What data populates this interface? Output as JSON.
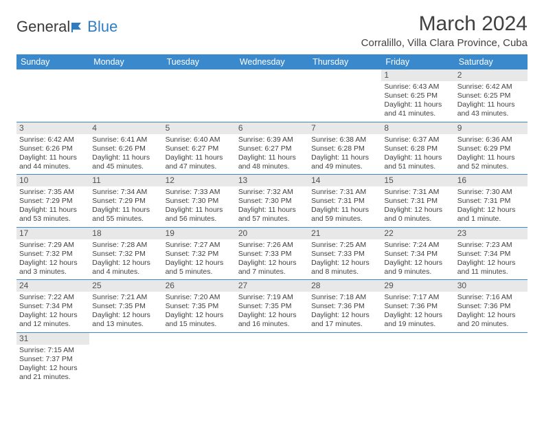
{
  "brand": {
    "part1": "General",
    "part2": "Blue"
  },
  "title": "March 2024",
  "location": "Corralillo, Villa Clara Province, Cuba",
  "colors": {
    "header_bg": "#3a89cc",
    "header_text": "#ffffff",
    "daynum_bg": "#e8e8e8",
    "border": "#3a89cc",
    "text": "#404040"
  },
  "weekdays": [
    "Sunday",
    "Monday",
    "Tuesday",
    "Wednesday",
    "Thursday",
    "Friday",
    "Saturday"
  ],
  "grid": [
    [
      null,
      null,
      null,
      null,
      null,
      {
        "n": "1",
        "sr": "Sunrise: 6:43 AM",
        "ss": "Sunset: 6:25 PM",
        "d1": "Daylight: 11 hours",
        "d2": "and 41 minutes."
      },
      {
        "n": "2",
        "sr": "Sunrise: 6:42 AM",
        "ss": "Sunset: 6:25 PM",
        "d1": "Daylight: 11 hours",
        "d2": "and 43 minutes."
      }
    ],
    [
      {
        "n": "3",
        "sr": "Sunrise: 6:42 AM",
        "ss": "Sunset: 6:26 PM",
        "d1": "Daylight: 11 hours",
        "d2": "and 44 minutes."
      },
      {
        "n": "4",
        "sr": "Sunrise: 6:41 AM",
        "ss": "Sunset: 6:26 PM",
        "d1": "Daylight: 11 hours",
        "d2": "and 45 minutes."
      },
      {
        "n": "5",
        "sr": "Sunrise: 6:40 AM",
        "ss": "Sunset: 6:27 PM",
        "d1": "Daylight: 11 hours",
        "d2": "and 47 minutes."
      },
      {
        "n": "6",
        "sr": "Sunrise: 6:39 AM",
        "ss": "Sunset: 6:27 PM",
        "d1": "Daylight: 11 hours",
        "d2": "and 48 minutes."
      },
      {
        "n": "7",
        "sr": "Sunrise: 6:38 AM",
        "ss": "Sunset: 6:28 PM",
        "d1": "Daylight: 11 hours",
        "d2": "and 49 minutes."
      },
      {
        "n": "8",
        "sr": "Sunrise: 6:37 AM",
        "ss": "Sunset: 6:28 PM",
        "d1": "Daylight: 11 hours",
        "d2": "and 51 minutes."
      },
      {
        "n": "9",
        "sr": "Sunrise: 6:36 AM",
        "ss": "Sunset: 6:29 PM",
        "d1": "Daylight: 11 hours",
        "d2": "and 52 minutes."
      }
    ],
    [
      {
        "n": "10",
        "sr": "Sunrise: 7:35 AM",
        "ss": "Sunset: 7:29 PM",
        "d1": "Daylight: 11 hours",
        "d2": "and 53 minutes."
      },
      {
        "n": "11",
        "sr": "Sunrise: 7:34 AM",
        "ss": "Sunset: 7:29 PM",
        "d1": "Daylight: 11 hours",
        "d2": "and 55 minutes."
      },
      {
        "n": "12",
        "sr": "Sunrise: 7:33 AM",
        "ss": "Sunset: 7:30 PM",
        "d1": "Daylight: 11 hours",
        "d2": "and 56 minutes."
      },
      {
        "n": "13",
        "sr": "Sunrise: 7:32 AM",
        "ss": "Sunset: 7:30 PM",
        "d1": "Daylight: 11 hours",
        "d2": "and 57 minutes."
      },
      {
        "n": "14",
        "sr": "Sunrise: 7:31 AM",
        "ss": "Sunset: 7:31 PM",
        "d1": "Daylight: 11 hours",
        "d2": "and 59 minutes."
      },
      {
        "n": "15",
        "sr": "Sunrise: 7:31 AM",
        "ss": "Sunset: 7:31 PM",
        "d1": "Daylight: 12 hours",
        "d2": "and 0 minutes."
      },
      {
        "n": "16",
        "sr": "Sunrise: 7:30 AM",
        "ss": "Sunset: 7:31 PM",
        "d1": "Daylight: 12 hours",
        "d2": "and 1 minute."
      }
    ],
    [
      {
        "n": "17",
        "sr": "Sunrise: 7:29 AM",
        "ss": "Sunset: 7:32 PM",
        "d1": "Daylight: 12 hours",
        "d2": "and 3 minutes."
      },
      {
        "n": "18",
        "sr": "Sunrise: 7:28 AM",
        "ss": "Sunset: 7:32 PM",
        "d1": "Daylight: 12 hours",
        "d2": "and 4 minutes."
      },
      {
        "n": "19",
        "sr": "Sunrise: 7:27 AM",
        "ss": "Sunset: 7:32 PM",
        "d1": "Daylight: 12 hours",
        "d2": "and 5 minutes."
      },
      {
        "n": "20",
        "sr": "Sunrise: 7:26 AM",
        "ss": "Sunset: 7:33 PM",
        "d1": "Daylight: 12 hours",
        "d2": "and 7 minutes."
      },
      {
        "n": "21",
        "sr": "Sunrise: 7:25 AM",
        "ss": "Sunset: 7:33 PM",
        "d1": "Daylight: 12 hours",
        "d2": "and 8 minutes."
      },
      {
        "n": "22",
        "sr": "Sunrise: 7:24 AM",
        "ss": "Sunset: 7:34 PM",
        "d1": "Daylight: 12 hours",
        "d2": "and 9 minutes."
      },
      {
        "n": "23",
        "sr": "Sunrise: 7:23 AM",
        "ss": "Sunset: 7:34 PM",
        "d1": "Daylight: 12 hours",
        "d2": "and 11 minutes."
      }
    ],
    [
      {
        "n": "24",
        "sr": "Sunrise: 7:22 AM",
        "ss": "Sunset: 7:34 PM",
        "d1": "Daylight: 12 hours",
        "d2": "and 12 minutes."
      },
      {
        "n": "25",
        "sr": "Sunrise: 7:21 AM",
        "ss": "Sunset: 7:35 PM",
        "d1": "Daylight: 12 hours",
        "d2": "and 13 minutes."
      },
      {
        "n": "26",
        "sr": "Sunrise: 7:20 AM",
        "ss": "Sunset: 7:35 PM",
        "d1": "Daylight: 12 hours",
        "d2": "and 15 minutes."
      },
      {
        "n": "27",
        "sr": "Sunrise: 7:19 AM",
        "ss": "Sunset: 7:35 PM",
        "d1": "Daylight: 12 hours",
        "d2": "and 16 minutes."
      },
      {
        "n": "28",
        "sr": "Sunrise: 7:18 AM",
        "ss": "Sunset: 7:36 PM",
        "d1": "Daylight: 12 hours",
        "d2": "and 17 minutes."
      },
      {
        "n": "29",
        "sr": "Sunrise: 7:17 AM",
        "ss": "Sunset: 7:36 PM",
        "d1": "Daylight: 12 hours",
        "d2": "and 19 minutes."
      },
      {
        "n": "30",
        "sr": "Sunrise: 7:16 AM",
        "ss": "Sunset: 7:36 PM",
        "d1": "Daylight: 12 hours",
        "d2": "and 20 minutes."
      }
    ],
    [
      {
        "n": "31",
        "sr": "Sunrise: 7:15 AM",
        "ss": "Sunset: 7:37 PM",
        "d1": "Daylight: 12 hours",
        "d2": "and 21 minutes."
      },
      null,
      null,
      null,
      null,
      null,
      null
    ]
  ]
}
